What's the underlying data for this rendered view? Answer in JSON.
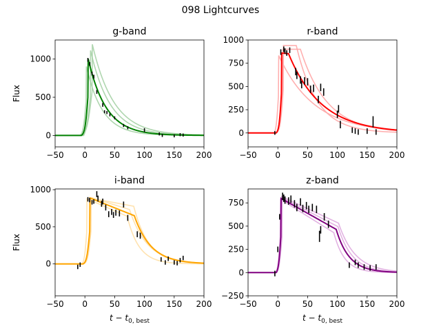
{
  "figure": {
    "suptitle": "098 Lightcurves"
  },
  "chart_data": [
    {
      "type": "line",
      "title": "g-band",
      "xlabel": "",
      "ylabel": "Flux",
      "xlim": [
        -50,
        200
      ],
      "ylim": [
        -150,
        1250
      ],
      "xticks": [
        -50,
        0,
        50,
        100,
        150,
        200
      ],
      "yticks": [
        0,
        500,
        1000
      ],
      "color": "#008000",
      "light_color": "#a6d1a6",
      "model": {
        "x0": -6,
        "rise": 2.5,
        "tpeak": 5,
        "peak": 1020,
        "plateau_slope": 0,
        "plateau_len": 0,
        "tau": 30
      },
      "samples": [
        {
          "x0": -8,
          "rise": 2.5,
          "tpeak": 2,
          "peak": 920,
          "plateau_slope": 0,
          "plateau_len": 0,
          "tau": 27
        },
        {
          "x0": -4,
          "rise": 4.5,
          "tpeak": 12,
          "peak": 1210,
          "plateau_slope": 0,
          "plateau_len": 0,
          "tau": 36
        },
        {
          "x0": -2,
          "rise": 4.0,
          "tpeak": 9,
          "peak": 1130,
          "plateau_slope": 0,
          "plateau_len": 0,
          "tau": 33
        }
      ],
      "points": [
        [
          5,
          990,
          25
        ],
        [
          8,
          935,
          25
        ],
        [
          12,
          810,
          25
        ],
        [
          15,
          770,
          25
        ],
        [
          20,
          570,
          25
        ],
        [
          30,
          400,
          25
        ],
        [
          33,
          310,
          20
        ],
        [
          37,
          300,
          20
        ],
        [
          42,
          270,
          20
        ],
        [
          50,
          230,
          20
        ],
        [
          65,
          130,
          20
        ],
        [
          72,
          100,
          20
        ],
        [
          100,
          70,
          25
        ],
        [
          125,
          20,
          20
        ],
        [
          130,
          0,
          20
        ],
        [
          150,
          -5,
          20
        ],
        [
          160,
          10,
          20
        ],
        [
          165,
          5,
          20
        ]
      ]
    },
    {
      "type": "line",
      "title": "r-band",
      "xlabel": "",
      "ylabel": "",
      "xlim": [
        -50,
        200
      ],
      "ylim": [
        -150,
        1000
      ],
      "xticks": [
        -50,
        0,
        50,
        100,
        150,
        200
      ],
      "yticks": [
        0,
        250,
        500,
        750,
        1000
      ],
      "color": "#ff0000",
      "light_color": "#ffa6a6",
      "model": {
        "x0": -3,
        "rise": 2.0,
        "tpeak": 6,
        "peak": 860,
        "plateau_slope": 0.6,
        "plateau_len": 12,
        "tau": 55
      },
      "samples": [
        {
          "x0": -6,
          "rise": 2.0,
          "tpeak": 1,
          "peak": 840,
          "plateau_slope": 0,
          "plateau_len": 0,
          "tau": 60
        },
        {
          "x0": -3,
          "rise": 2.5,
          "tpeak": 9,
          "peak": 940,
          "plateau_slope": 0,
          "plateau_len": 22,
          "tau": 35
        },
        {
          "x0": -2,
          "rise": 3.0,
          "tpeak": 8,
          "peak": 900,
          "plateau_slope": 0,
          "plateau_len": 30,
          "tau": 45
        }
      ],
      "points": [
        [
          -5,
          0,
          20
        ],
        [
          5,
          870,
          30
        ],
        [
          10,
          900,
          30
        ],
        [
          12,
          880,
          30
        ],
        [
          15,
          860,
          30
        ],
        [
          20,
          890,
          30
        ],
        [
          30,
          660,
          40
        ],
        [
          32,
          620,
          40
        ],
        [
          38,
          570,
          40
        ],
        [
          40,
          520,
          40
        ],
        [
          45,
          560,
          40
        ],
        [
          50,
          550,
          40
        ],
        [
          55,
          470,
          40
        ],
        [
          60,
          480,
          40
        ],
        [
          68,
          360,
          40
        ],
        [
          72,
          490,
          40
        ],
        [
          77,
          440,
          40
        ],
        [
          100,
          200,
          40
        ],
        [
          102,
          260,
          40
        ],
        [
          105,
          90,
          40
        ],
        [
          125,
          30,
          30
        ],
        [
          130,
          20,
          30
        ],
        [
          135,
          10,
          30
        ],
        [
          150,
          20,
          30
        ],
        [
          160,
          120,
          60
        ],
        [
          165,
          10,
          30
        ]
      ]
    },
    {
      "type": "line",
      "title": "i-band",
      "xlabel": "t - t0,best",
      "ylabel": "Flux",
      "xlim": [
        -50,
        200
      ],
      "ylim": [
        -430,
        1010
      ],
      "xticks": [
        -50,
        0,
        50,
        100,
        150,
        200
      ],
      "yticks": [
        0,
        500,
        1000
      ],
      "color": "#ffa500",
      "light_color": "#ffdfa6",
      "model": {
        "x0": -3,
        "rise": 2.5,
        "tpeak": 8,
        "peak": 890,
        "plateau_slope": 3.2,
        "plateau_len": 75,
        "tau": 28
      },
      "samples": [
        {
          "x0": -5,
          "rise": 2.0,
          "tpeak": 3,
          "peak": 880,
          "plateau_slope": 3.5,
          "plateau_len": 68,
          "tau": 20
        },
        {
          "x0": -3,
          "rise": 2.5,
          "tpeak": 10,
          "peak": 895,
          "plateau_slope": 2.5,
          "plateau_len": 65,
          "tau": 30
        },
        {
          "x0": -2,
          "rise": 3.0,
          "tpeak": 10,
          "peak": 885,
          "plateau_slope": 1.5,
          "plateau_len": 72,
          "tau": 25
        }
      ],
      "points": [
        [
          -12,
          -40,
          30
        ],
        [
          -8,
          -10,
          30
        ],
        [
          5,
          870,
          30
        ],
        [
          8,
          860,
          30
        ],
        [
          12,
          830,
          30
        ],
        [
          15,
          840,
          30
        ],
        [
          20,
          940,
          40
        ],
        [
          22,
          880,
          40
        ],
        [
          28,
          810,
          40
        ],
        [
          30,
          840,
          40
        ],
        [
          35,
          760,
          40
        ],
        [
          40,
          670,
          40
        ],
        [
          45,
          700,
          40
        ],
        [
          48,
          660,
          40
        ],
        [
          52,
          690,
          40
        ],
        [
          58,
          680,
          40
        ],
        [
          65,
          800,
          40
        ],
        [
          72,
          620,
          40
        ],
        [
          88,
          400,
          40
        ],
        [
          93,
          380,
          40
        ],
        [
          128,
          60,
          30
        ],
        [
          135,
          20,
          30
        ],
        [
          140,
          70,
          30
        ],
        [
          150,
          20,
          30
        ],
        [
          155,
          10,
          30
        ],
        [
          160,
          50,
          30
        ],
        [
          165,
          80,
          30
        ]
      ]
    },
    {
      "type": "line",
      "title": "z-band",
      "xlabel": "t - t0,best",
      "ylabel": "",
      "xlim": [
        -50,
        200
      ],
      "ylim": [
        -250,
        900
      ],
      "xticks": [
        -50,
        0,
        50,
        100,
        150,
        200
      ],
      "yticks": [
        -250,
        0,
        250,
        500,
        750
      ],
      "color": "#800080",
      "light_color": "#dfaadf",
      "model": {
        "x0": -3,
        "rise": 2.0,
        "tpeak": 5,
        "peak": 800,
        "plateau_slope": 3.6,
        "plateau_len": 93,
        "tau": 22
      },
      "samples": [
        {
          "x0": -4,
          "rise": 2.0,
          "tpeak": 4,
          "peak": 790,
          "plateau_slope": 4.0,
          "plateau_len": 90,
          "tau": 18
        },
        {
          "x0": -3,
          "rise": 2.5,
          "tpeak": 6,
          "peak": 820,
          "plateau_slope": 3.0,
          "plateau_len": 96,
          "tau": 28
        },
        {
          "x0": -2,
          "rise": 2.5,
          "tpeak": 7,
          "peak": 805,
          "plateau_slope": 3.3,
          "plateau_len": 94,
          "tau": 24
        }
      ],
      "points": [
        [
          -5,
          -10,
          30
        ],
        [
          0,
          250,
          30
        ],
        [
          3,
          600,
          30
        ],
        [
          8,
          820,
          40
        ],
        [
          10,
          800,
          40
        ],
        [
          12,
          780,
          40
        ],
        [
          18,
          770,
          40
        ],
        [
          22,
          790,
          40
        ],
        [
          28,
          740,
          40
        ],
        [
          32,
          700,
          40
        ],
        [
          38,
          760,
          40
        ],
        [
          42,
          690,
          40
        ],
        [
          48,
          720,
          40
        ],
        [
          52,
          680,
          40
        ],
        [
          58,
          700,
          40
        ],
        [
          65,
          680,
          40
        ],
        [
          70,
          390,
          60
        ],
        [
          72,
          460,
          40
        ],
        [
          78,
          600,
          40
        ],
        [
          85,
          520,
          40
        ],
        [
          120,
          80,
          30
        ],
        [
          130,
          110,
          30
        ],
        [
          135,
          80,
          30
        ],
        [
          145,
          60,
          30
        ],
        [
          155,
          50,
          30
        ],
        [
          165,
          60,
          30
        ]
      ]
    }
  ]
}
